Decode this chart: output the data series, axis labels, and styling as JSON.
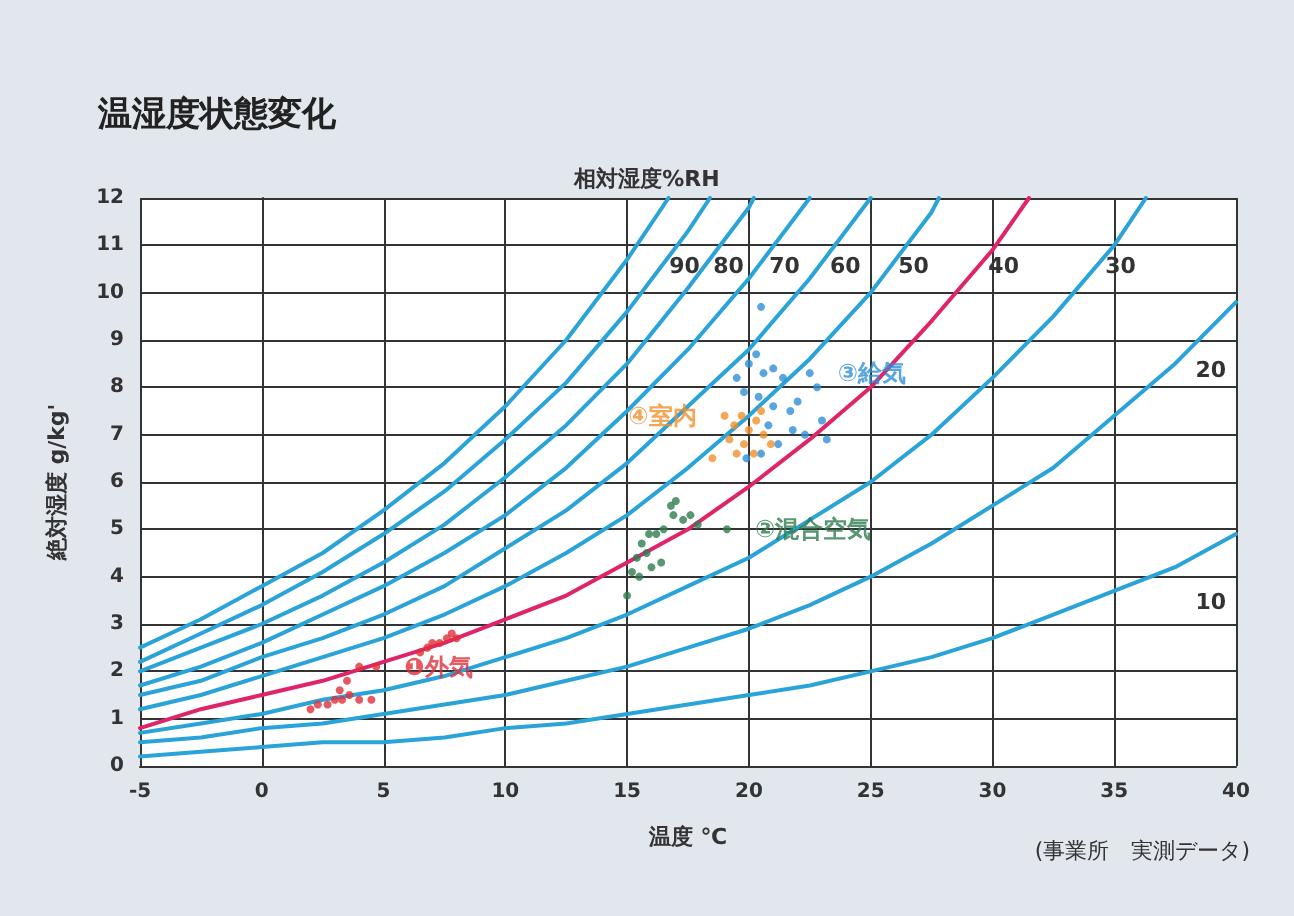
{
  "chart_data": {
    "type": "line",
    "title": "温湿度状態変化",
    "xlabel": "温度 ℃",
    "ylabel": "絶対湿度 g/kg'",
    "annotations": [
      "相対湿度%RH",
      "(事業所　実測データ)"
    ],
    "xlim": [
      -5,
      40
    ],
    "xticks": [
      -5,
      0,
      5,
      10,
      15,
      20,
      25,
      30,
      35,
      40
    ],
    "ylim": [
      0,
      12
    ],
    "yticks": [
      0,
      1,
      2,
      3,
      4,
      5,
      6,
      7,
      8,
      9,
      10,
      11,
      12
    ],
    "grid": true,
    "legend": false,
    "marker": "none",
    "series": [
      {
        "color": "#2aa3d8",
        "x": [
          -5,
          -2.5,
          0,
          2.5,
          5,
          7.5,
          10,
          12.5,
          15,
          16.7
        ],
        "values": [
          2.5,
          3.1,
          3.8,
          4.5,
          5.4,
          6.4,
          7.6,
          9.0,
          10.7,
          12
        ]
      },
      {
        "name": "90",
        "color": "#2aa3d8",
        "x": [
          -5,
          -2.5,
          0,
          2.5,
          5,
          7.5,
          10,
          12.5,
          15,
          17.5,
          18.4
        ],
        "values": [
          2.2,
          2.8,
          3.4,
          4.1,
          4.9,
          5.8,
          6.9,
          8.1,
          9.6,
          11.3,
          12
        ]
      },
      {
        "name": "80",
        "color": "#2aa3d8",
        "x": [
          -5,
          -2.5,
          0,
          2.5,
          5,
          7.5,
          10,
          12.5,
          15,
          17.5,
          20,
          20.2
        ],
        "values": [
          2.0,
          2.5,
          3.0,
          3.6,
          4.3,
          5.1,
          6.1,
          7.2,
          8.5,
          10.1,
          11.8,
          12
        ]
      },
      {
        "name": "70",
        "color": "#2aa3d8",
        "x": [
          -5,
          -2.5,
          0,
          2.5,
          5,
          7.5,
          10,
          12.5,
          15,
          17.5,
          20,
          22.5
        ],
        "values": [
          1.7,
          2.1,
          2.6,
          3.2,
          3.8,
          4.5,
          5.3,
          6.3,
          7.5,
          8.8,
          10.3,
          12
        ]
      },
      {
        "name": "60",
        "color": "#2aa3d8",
        "x": [
          -5,
          -2.5,
          0,
          2.5,
          5,
          7.5,
          10,
          12.5,
          15,
          17.5,
          20,
          22.5,
          25
        ],
        "values": [
          1.5,
          1.8,
          2.3,
          2.7,
          3.2,
          3.8,
          4.6,
          5.4,
          6.4,
          7.6,
          8.8,
          10.3,
          12
        ]
      },
      {
        "name": "50",
        "color": "#2aa3d8",
        "x": [
          -5,
          -2.5,
          0,
          2.5,
          5,
          7.5,
          10,
          12.5,
          15,
          17.5,
          20,
          22.5,
          25,
          27.5,
          27.8
        ],
        "values": [
          1.2,
          1.5,
          1.9,
          2.3,
          2.7,
          3.2,
          3.8,
          4.5,
          5.3,
          6.3,
          7.4,
          8.6,
          10.0,
          11.7,
          12
        ]
      },
      {
        "name": "40",
        "color": "#e0246a",
        "x": [
          -5,
          -2.5,
          0,
          2.5,
          5,
          7.5,
          10,
          12.5,
          15,
          17.5,
          20,
          22.5,
          25,
          27.5,
          30,
          31.5
        ],
        "values": [
          0.8,
          1.2,
          1.5,
          1.8,
          2.2,
          2.6,
          3.1,
          3.6,
          4.3,
          5.0,
          5.9,
          6.9,
          8.0,
          9.4,
          10.9,
          12
        ]
      },
      {
        "name": "30",
        "color": "#2aa3d8",
        "x": [
          -5,
          -2.5,
          0,
          2.5,
          5,
          7.5,
          10,
          12.5,
          15,
          17.5,
          20,
          22.5,
          25,
          27.5,
          30,
          32.5,
          35,
          36.3
        ],
        "values": [
          0.7,
          0.9,
          1.1,
          1.4,
          1.6,
          1.9,
          2.3,
          2.7,
          3.2,
          3.8,
          4.4,
          5.2,
          6.0,
          7.0,
          8.2,
          9.5,
          11.0,
          12
        ]
      },
      {
        "name": "20",
        "color": "#2aa3d8",
        "x": [
          -5,
          -2.5,
          0,
          2.5,
          5,
          7.5,
          10,
          12.5,
          15,
          17.5,
          20,
          22.5,
          25,
          27.5,
          30,
          32.5,
          35,
          37.5,
          40
        ],
        "values": [
          0.5,
          0.6,
          0.8,
          0.9,
          1.1,
          1.3,
          1.5,
          1.8,
          2.1,
          2.5,
          2.9,
          3.4,
          4.0,
          4.7,
          5.5,
          6.3,
          7.4,
          8.5,
          9.8
        ]
      },
      {
        "name": "10",
        "color": "#2aa3d8",
        "x": [
          -5,
          -2.5,
          0,
          2.5,
          5,
          7.5,
          10,
          12.5,
          15,
          17.5,
          20,
          22.5,
          25,
          27.5,
          30,
          32.5,
          35,
          37.5,
          40
        ],
        "values": [
          0.2,
          0.3,
          0.4,
          0.5,
          0.5,
          0.6,
          0.8,
          0.9,
          1.1,
          1.3,
          1.5,
          1.7,
          2.0,
          2.3,
          2.7,
          3.2,
          3.7,
          4.2,
          4.9
        ]
      },
      {
        "name": "❶外気",
        "type": "scatter",
        "marker": "circle",
        "color": "#e0303a",
        "x": [
          4.7,
          2,
          2.3,
          2.7,
          3,
          3.3,
          3.6,
          4,
          4.5,
          3.5,
          4,
          6.5,
          6.8,
          7,
          7.3,
          7.6,
          8,
          7.8,
          3.2
        ],
        "values": [
          2.1,
          1.2,
          1.3,
          1.3,
          1.4,
          1.4,
          1.5,
          1.4,
          1.4,
          1.8,
          2.1,
          2.4,
          2.5,
          2.6,
          2.6,
          2.7,
          2.7,
          2.8,
          1.6
        ]
      },
      {
        "name": "②混合空気",
        "type": "scatter",
        "marker": "circle",
        "color": "#2e7d4f",
        "x": [
          19.1,
          15.2,
          15.4,
          15.6,
          15.8,
          16,
          16.2,
          16.5,
          16.8,
          17,
          17.3,
          17.6,
          17.9,
          16.4,
          15.5,
          15,
          16.9,
          15.9
        ],
        "values": [
          5.0,
          4.1,
          4.4,
          4.7,
          4.5,
          4.2,
          4.9,
          5.0,
          5.5,
          5.6,
          5.2,
          5.3,
          5.1,
          4.3,
          4.0,
          3.6,
          5.3,
          4.9
        ]
      },
      {
        "name": "③給気",
        "type": "scatter",
        "marker": "circle",
        "color": "#2f8fd6",
        "x": [
          22.5,
          20.5,
          19.5,
          20,
          20.3,
          20.6,
          21,
          21.4,
          19.8,
          20.4,
          21,
          21.7,
          23,
          22.8,
          21.8,
          22.3,
          23.2,
          21.2,
          20.5,
          19.9,
          20.8,
          22
        ],
        "values": [
          8.3,
          9.7,
          8.2,
          8.5,
          8.7,
          8.3,
          8.4,
          8.2,
          7.9,
          7.8,
          7.6,
          7.5,
          7.3,
          8.0,
          7.1,
          7.0,
          6.9,
          6.8,
          6.6,
          6.5,
          7.2,
          7.7
        ]
      },
      {
        "name": "④室内",
        "type": "scatter",
        "marker": "circle",
        "color": "#f0902a",
        "x": [
          19,
          19.4,
          19.7,
          20,
          20.3,
          20.6,
          20.9,
          19.8,
          20.2,
          19.5,
          18.5,
          20.5,
          19.2
        ],
        "values": [
          7.4,
          7.2,
          7.4,
          7.1,
          7.3,
          7.0,
          6.8,
          6.8,
          6.6,
          6.6,
          6.5,
          7.5,
          6.9
        ]
      }
    ]
  }
}
